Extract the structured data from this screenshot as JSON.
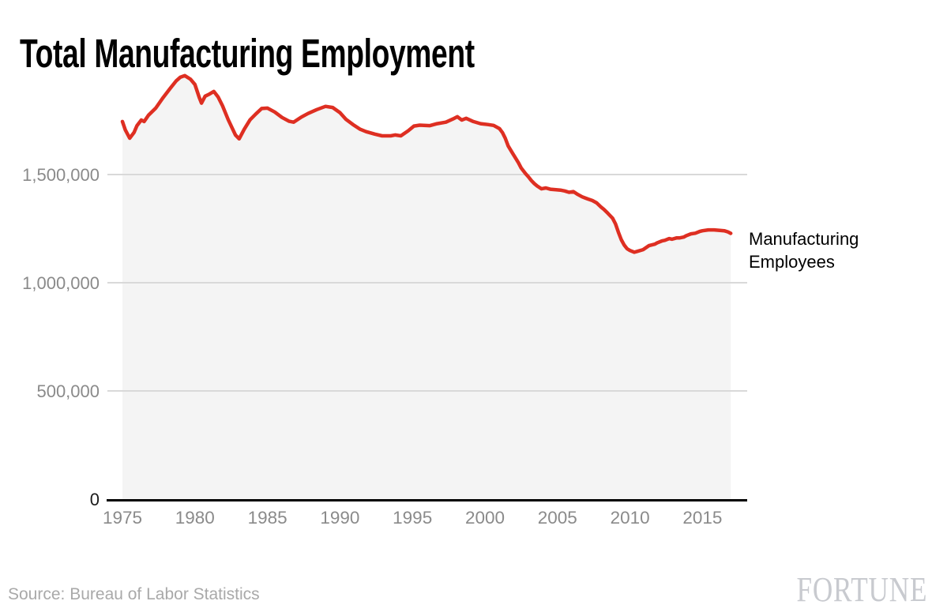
{
  "header": {
    "title": "Total Manufacturing Employment"
  },
  "chart_data": {
    "type": "area",
    "title": "Total Manufacturing Employment",
    "xlabel": "",
    "ylabel": "",
    "grid": "horizontal",
    "legend_position": "right-of-line-end",
    "x_axis": {
      "ticks": [
        1975,
        1980,
        1985,
        1990,
        1995,
        2000,
        2005,
        2010,
        2015
      ],
      "range": [
        1975,
        2017.1
      ]
    },
    "y_axis": {
      "ticks": [
        0,
        500000,
        1000000,
        1500000
      ],
      "range": [
        0,
        2000000
      ],
      "tick_format": "comma"
    },
    "series": [
      {
        "name": "Manufacturing Employees",
        "label_line1": "Manufacturing",
        "label_line2": "Employees",
        "points": [
          [
            1975.0,
            1745000
          ],
          [
            1975.2,
            1706000
          ],
          [
            1975.5,
            1668000
          ],
          [
            1975.8,
            1694000
          ],
          [
            1976.0,
            1726000
          ],
          [
            1976.3,
            1752000
          ],
          [
            1976.5,
            1745000
          ],
          [
            1976.8,
            1774000
          ],
          [
            1977.3,
            1807000
          ],
          [
            1977.8,
            1855000
          ],
          [
            1978.3,
            1899000
          ],
          [
            1978.7,
            1932000
          ],
          [
            1979.0,
            1950000
          ],
          [
            1979.3,
            1957000
          ],
          [
            1979.7,
            1940000
          ],
          [
            1980.0,
            1916000
          ],
          [
            1980.3,
            1856000
          ],
          [
            1980.45,
            1830000
          ],
          [
            1980.7,
            1862000
          ],
          [
            1981.0,
            1872000
          ],
          [
            1981.3,
            1884000
          ],
          [
            1981.6,
            1858000
          ],
          [
            1981.9,
            1818000
          ],
          [
            1982.3,
            1753000
          ],
          [
            1982.8,
            1682000
          ],
          [
            1983.05,
            1665000
          ],
          [
            1983.4,
            1709000
          ],
          [
            1983.8,
            1753000
          ],
          [
            1984.2,
            1780000
          ],
          [
            1984.6,
            1805000
          ],
          [
            1985.0,
            1807000
          ],
          [
            1985.5,
            1789000
          ],
          [
            1986.0,
            1764000
          ],
          [
            1986.5,
            1746000
          ],
          [
            1986.8,
            1742000
          ],
          [
            1987.3,
            1764000
          ],
          [
            1987.8,
            1782000
          ],
          [
            1988.4,
            1800000
          ],
          [
            1989.0,
            1815000
          ],
          [
            1989.5,
            1810000
          ],
          [
            1990.0,
            1786000
          ],
          [
            1990.4,
            1756000
          ],
          [
            1990.9,
            1731000
          ],
          [
            1991.4,
            1709000
          ],
          [
            1991.8,
            1698000
          ],
          [
            1992.4,
            1687000
          ],
          [
            1992.9,
            1679000
          ],
          [
            1993.5,
            1679000
          ],
          [
            1993.8,
            1683000
          ],
          [
            1994.2,
            1679000
          ],
          [
            1994.7,
            1702000
          ],
          [
            1995.1,
            1724000
          ],
          [
            1995.5,
            1728000
          ],
          [
            1996.2,
            1726000
          ],
          [
            1996.7,
            1735000
          ],
          [
            1997.3,
            1742000
          ],
          [
            1997.8,
            1757000
          ],
          [
            1998.1,
            1767000
          ],
          [
            1998.4,
            1752000
          ],
          [
            1998.7,
            1760000
          ],
          [
            1999.2,
            1745000
          ],
          [
            1999.7,
            1735000
          ],
          [
            2000.2,
            1731000
          ],
          [
            2000.6,
            1727000
          ],
          [
            2001.0,
            1712000
          ],
          [
            2001.2,
            1694000
          ],
          [
            2001.4,
            1668000
          ],
          [
            2001.6,
            1632000
          ],
          [
            2001.9,
            1599000
          ],
          [
            2002.1,
            1577000
          ],
          [
            2002.3,
            1555000
          ],
          [
            2002.5,
            1530000
          ],
          [
            2002.8,
            1504000
          ],
          [
            2003.0,
            1489000
          ],
          [
            2003.2,
            1472000
          ],
          [
            2003.4,
            1458000
          ],
          [
            2003.6,
            1447000
          ],
          [
            2003.9,
            1434000
          ],
          [
            2004.2,
            1438000
          ],
          [
            2004.5,
            1432000
          ],
          [
            2004.9,
            1430000
          ],
          [
            2005.2,
            1428000
          ],
          [
            2005.5,
            1424000
          ],
          [
            2005.8,
            1418000
          ],
          [
            2006.1,
            1421000
          ],
          [
            2006.4,
            1408000
          ],
          [
            2006.7,
            1397000
          ],
          [
            2006.9,
            1392000
          ],
          [
            2007.1,
            1387000
          ],
          [
            2007.4,
            1380000
          ],
          [
            2007.7,
            1369000
          ],
          [
            2008.0,
            1350000
          ],
          [
            2008.2,
            1339000
          ],
          [
            2008.4,
            1326000
          ],
          [
            2008.6,
            1312000
          ],
          [
            2008.8,
            1298000
          ],
          [
            2009.0,
            1272000
          ],
          [
            2009.2,
            1234000
          ],
          [
            2009.4,
            1199000
          ],
          [
            2009.6,
            1174000
          ],
          [
            2009.8,
            1157000
          ],
          [
            2010.0,
            1149000
          ],
          [
            2010.3,
            1141000
          ],
          [
            2010.5,
            1145000
          ],
          [
            2010.9,
            1153000
          ],
          [
            2011.3,
            1171000
          ],
          [
            2011.7,
            1178000
          ],
          [
            2011.9,
            1185000
          ],
          [
            2012.2,
            1193000
          ],
          [
            2012.4,
            1196000
          ],
          [
            2012.7,
            1204000
          ],
          [
            2012.9,
            1201000
          ],
          [
            2013.2,
            1207000
          ],
          [
            2013.4,
            1207000
          ],
          [
            2013.7,
            1211000
          ],
          [
            2013.9,
            1218000
          ],
          [
            2014.2,
            1226000
          ],
          [
            2014.5,
            1229000
          ],
          [
            2014.8,
            1237000
          ],
          [
            2015.0,
            1240000
          ],
          [
            2015.4,
            1244000
          ],
          [
            2015.8,
            1244000
          ],
          [
            2016.2,
            1242000
          ],
          [
            2016.5,
            1240000
          ],
          [
            2016.75,
            1235000
          ],
          [
            2016.95,
            1228000
          ]
        ]
      }
    ]
  },
  "colors": {
    "line": "#de2f22",
    "area": "#f4f4f4",
    "grid": "#d9d9d9",
    "tick_label": "#8a8a8a",
    "zero_label": "#1a1a1a",
    "axis": "#000000",
    "title": "#000000",
    "series_label": "#000000",
    "source": "#a9a9a9",
    "brand": "#c8cacf"
  },
  "footer": {
    "source": "Source: Bureau of Labor Statistics",
    "brand": "FORTUNE"
  }
}
